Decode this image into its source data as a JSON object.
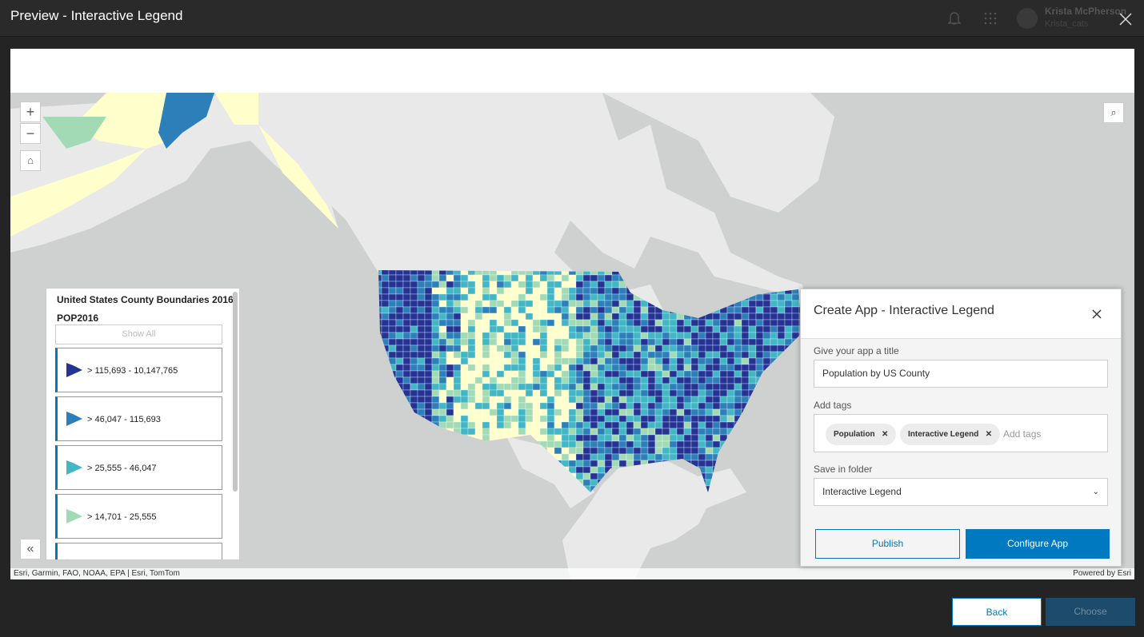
{
  "header": {
    "title": "Preview - Interactive Legend",
    "user_name": "Krista McPherson",
    "user_id": "Krista_cats"
  },
  "map": {
    "attribution": "Esri, Garmin, FAO, NOAA, EPA | Esri, TomTom",
    "powered_by": "Powered by Esri"
  },
  "legend": {
    "title": "United States County Boundaries 2016",
    "field": "POP2016",
    "show_all": "Show All",
    "items": [
      {
        "label": "> 115,693 - 10,147,765",
        "color": "#253494"
      },
      {
        "label": "> 46,047 - 115,693",
        "color": "#2c7fb8"
      },
      {
        "label": "> 25,555 - 46,047",
        "color": "#41b6c4"
      },
      {
        "label": "> 14,701 - 25,555",
        "color": "#a1dab4"
      },
      {
        "label": "",
        "color": "#ffffcc"
      }
    ]
  },
  "dialog": {
    "title": "Create App - Interactive Legend",
    "title_label": "Give your app a title",
    "title_value": "Population by US County",
    "tags_label": "Add tags",
    "tags": [
      "Population",
      "Interactive Legend"
    ],
    "tags_placeholder": "Add tags",
    "folder_label": "Save in folder",
    "folder_value": "Interactive Legend",
    "publish": "Publish",
    "configure": "Configure App"
  },
  "footer": {
    "back": "Back",
    "choose": "Choose"
  }
}
